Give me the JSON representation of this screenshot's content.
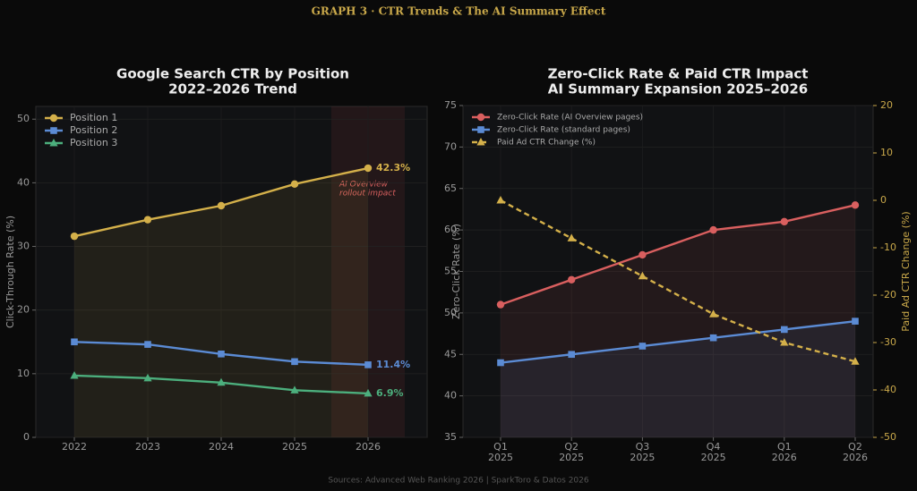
{
  "header": "GRAPH 3  ·  CTR Trends & The AI Summary Effect",
  "footer": "Sources: Advanced Web Ranking 2026 | SparkToro & Datos 2026",
  "chart_data": [
    {
      "type": "line",
      "title": "Google Search CTR by Position",
      "subtitle": "2022–2026 Trend",
      "ylabel": "Click-Through Rate (%)",
      "categories": [
        "2022",
        "2023",
        "2024",
        "2025",
        "2026"
      ],
      "ylim": [
        0,
        52
      ],
      "yticks": [
        0,
        10,
        20,
        30,
        40,
        50
      ],
      "grid": true,
      "legend": "upper left",
      "annotation": [
        "AI Overview",
        "rollout impact"
      ],
      "series": [
        {
          "name": "Position 1",
          "color": "#d4b04a",
          "marker": "circle",
          "fill": true,
          "values": [
            31.6,
            34.2,
            36.4,
            39.8,
            42.3
          ],
          "end_label": "42.3%"
        },
        {
          "name": "Position 2",
          "color": "#5b8bd4",
          "marker": "square",
          "values": [
            15.0,
            14.6,
            13.1,
            11.9,
            11.4
          ],
          "end_label": "11.4%"
        },
        {
          "name": "Position 3",
          "color": "#4caf7d",
          "marker": "triangle",
          "values": [
            9.7,
            9.3,
            8.6,
            7.4,
            6.9
          ],
          "end_label": "6.9%"
        }
      ]
    },
    {
      "type": "line",
      "title": "Zero-Click Rate & Paid CTR Impact",
      "subtitle": "AI Summary Expansion 2025–2026",
      "ylabel": "Zero-Click Rate (%)",
      "y2label": "Paid Ad CTR Change (%)",
      "categories": [
        [
          "Q1",
          "2025"
        ],
        [
          "Q2",
          "2025"
        ],
        [
          "Q3",
          "2025"
        ],
        [
          "Q4",
          "2025"
        ],
        [
          "Q1",
          "2026"
        ],
        [
          "Q2",
          "2026"
        ]
      ],
      "ylim": [
        35,
        75
      ],
      "yticks": [
        35,
        40,
        45,
        50,
        55,
        60,
        65,
        70,
        75
      ],
      "y2lim": [
        -50,
        20
      ],
      "y2ticks": [
        -50,
        -40,
        -30,
        -20,
        -10,
        0,
        10,
        20
      ],
      "grid": true,
      "legend": "upper left",
      "series": [
        {
          "name": "Zero-Click Rate (AI Overview pages)",
          "color": "#d95f5f",
          "marker": "circle",
          "fill": true,
          "values": [
            51,
            54,
            57,
            60,
            61,
            63
          ]
        },
        {
          "name": "Zero-Click Rate (standard pages)",
          "color": "#5b8bd4",
          "marker": "square",
          "fill": true,
          "values": [
            44,
            45,
            46,
            47,
            48,
            49
          ]
        },
        {
          "name": "Paid Ad CTR Change (%)",
          "color": "#d4b04a",
          "marker": "triangle",
          "dash": true,
          "axis": "y2",
          "values": [
            0,
            -8,
            -16,
            -24,
            -30,
            -34
          ]
        }
      ]
    }
  ]
}
